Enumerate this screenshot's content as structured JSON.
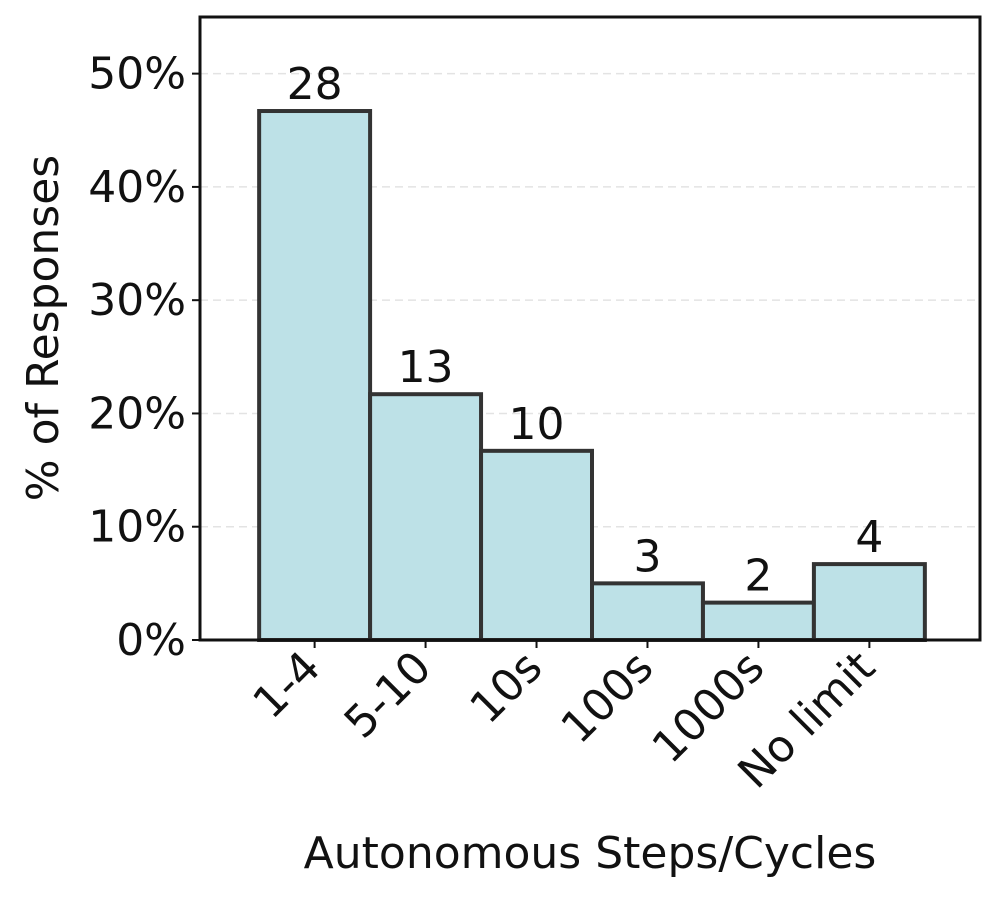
{
  "chart_data": {
    "type": "bar",
    "x_label": "Autonomous Steps/Cycles",
    "y_label": "% of Responses",
    "categories": [
      "1-4",
      "5-10",
      "10s",
      "100s",
      "1000s",
      "No limit"
    ],
    "values": [
      46.7,
      21.7,
      16.7,
      5,
      3.3,
      6.7
    ],
    "counts": [
      28,
      13,
      10,
      3,
      2,
      4
    ],
    "color": "#bde1e7",
    "edge_color": "#333333",
    "ylim": [
      0,
      55
    ],
    "yticks": [
      {
        "value": 0,
        "label": "0%"
      },
      {
        "value": 10,
        "label": "10%"
      },
      {
        "value": 20,
        "label": "20%"
      },
      {
        "value": 30,
        "label": "30%"
      },
      {
        "value": 40,
        "label": "40%"
      },
      {
        "value": 50,
        "label": "50%"
      }
    ],
    "grid": true
  }
}
